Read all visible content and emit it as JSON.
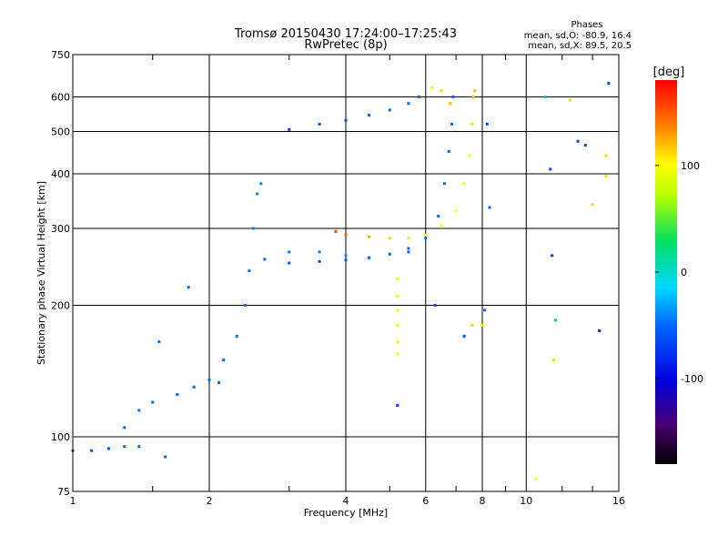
{
  "chart_data": {
    "type": "scatter",
    "title": "Tromsø 20150430 17:24:00–17:25:43",
    "subtitle": "RwPretec (8p)",
    "xlabel": "Frequency [MHz]",
    "ylabel": "Stationary phase Virtual Height [km]",
    "x_scale": "log",
    "y_scale": "log",
    "xlim": [
      1,
      16
    ],
    "ylim": [
      75,
      750
    ],
    "x_ticks": [
      1,
      2,
      4,
      6,
      8,
      10,
      16
    ],
    "x_tick_labels": [
      "1",
      "2",
      "4",
      "6",
      "8",
      "10",
      "16"
    ],
    "x_minor_ticks": [
      1.5,
      3,
      5,
      7,
      9,
      12,
      14
    ],
    "y_ticks": [
      75,
      100,
      200,
      300,
      400,
      500,
      600,
      750
    ],
    "y_tick_labels": [
      "75",
      "100",
      "200",
      "300",
      "400",
      "500",
      "600",
      "750"
    ],
    "grid": true,
    "info": {
      "heading": "Phases",
      "line_o": "mean, sd,O: -80.9, 16.4",
      "line_x": "mean, sd,X:  89.5, 20.5"
    },
    "colorbar": {
      "label": "[deg]",
      "min": -180,
      "max": 180,
      "ticks": [
        100,
        0,
        -100
      ],
      "tick_labels": [
        "100",
        "0",
        "-100"
      ]
    },
    "series": [
      {
        "points": [
          [
            1.0,
            93,
            -85
          ],
          [
            1.1,
            93,
            -85
          ],
          [
            1.2,
            94,
            -85
          ],
          [
            1.3,
            95,
            -83
          ],
          [
            1.4,
            95,
            -80
          ],
          [
            1.3,
            105,
            -80
          ],
          [
            1.4,
            115,
            -75
          ],
          [
            1.5,
            120,
            -80
          ],
          [
            1.7,
            125,
            -80
          ],
          [
            1.85,
            130,
            -78
          ],
          [
            2.0,
            135,
            -76
          ],
          [
            2.15,
            150,
            -76
          ],
          [
            2.3,
            170,
            -74
          ],
          [
            2.4,
            200,
            -72
          ],
          [
            2.45,
            240,
            -70
          ],
          [
            2.5,
            300,
            -66
          ],
          [
            2.55,
            360,
            -62
          ],
          [
            2.6,
            380,
            -60
          ],
          [
            2.65,
            255,
            -80
          ],
          [
            3.0,
            250,
            -86
          ],
          [
            3.5,
            252,
            -86
          ],
          [
            4.0,
            254,
            -84
          ],
          [
            4.5,
            257,
            -82
          ],
          [
            5.0,
            262,
            -80
          ],
          [
            5.5,
            270,
            -78
          ],
          [
            6.0,
            285,
            -78
          ],
          [
            6.4,
            320,
            -80
          ],
          [
            6.6,
            380,
            -80
          ],
          [
            6.75,
            450,
            -80
          ],
          [
            6.85,
            520,
            -80
          ],
          [
            6.9,
            600,
            -80
          ],
          [
            3.0,
            505,
            -90
          ],
          [
            3.5,
            520,
            -88
          ],
          [
            4.0,
            530,
            -85
          ],
          [
            4.5,
            545,
            -82
          ],
          [
            5.0,
            560,
            -80
          ],
          [
            5.5,
            580,
            -78
          ],
          [
            5.8,
            600,
            -78
          ],
          [
            3.0,
            265,
            -70
          ],
          [
            3.5,
            265,
            -65
          ],
          [
            4.0,
            260,
            -60
          ]
        ]
      },
      {
        "points": [
          [
            3.8,
            295,
            150
          ],
          [
            4.0,
            290,
            140
          ],
          [
            4.5,
            287,
            110
          ],
          [
            5.0,
            285,
            100
          ],
          [
            5.5,
            285,
            95
          ],
          [
            6.0,
            290,
            90
          ],
          [
            6.5,
            305,
            88
          ],
          [
            7.0,
            330,
            85
          ],
          [
            7.3,
            380,
            85
          ],
          [
            7.5,
            440,
            88
          ],
          [
            7.6,
            520,
            95
          ],
          [
            7.65,
            600,
            105
          ],
          [
            7.7,
            620,
            110
          ]
        ]
      },
      {
        "points": [
          [
            5.2,
            230,
            90
          ],
          [
            5.2,
            210,
            90
          ],
          [
            5.2,
            195,
            90
          ],
          [
            5.2,
            180,
            90
          ],
          [
            5.2,
            165,
            90
          ],
          [
            5.2,
            155,
            90
          ],
          [
            6.2,
            630,
            90
          ],
          [
            6.3,
            200,
            -85
          ],
          [
            6.5,
            620,
            100
          ],
          [
            6.8,
            580,
            110
          ],
          [
            7.3,
            170,
            -85
          ],
          [
            7.6,
            180,
            100
          ],
          [
            8.0,
            180,
            100
          ],
          [
            8.1,
            195,
            -80
          ],
          [
            8.2,
            520,
            -90
          ],
          [
            8.3,
            335,
            -80
          ],
          [
            10.5,
            80,
            80
          ],
          [
            11.0,
            600,
            -30
          ],
          [
            11.3,
            410,
            -90
          ],
          [
            11.4,
            260,
            -90
          ],
          [
            11.5,
            150,
            100
          ],
          [
            11.6,
            185,
            20
          ],
          [
            12.5,
            590,
            100
          ],
          [
            13.0,
            475,
            -90
          ],
          [
            13.5,
            465,
            -90
          ],
          [
            14.0,
            340,
            100
          ],
          [
            14.5,
            175,
            -100
          ],
          [
            15.0,
            440,
            100
          ],
          [
            15.0,
            395,
            100
          ],
          [
            15.2,
            645,
            -90
          ],
          [
            1.8,
            220,
            -80
          ],
          [
            1.55,
            165,
            -80
          ],
          [
            2.1,
            133,
            -80
          ],
          [
            1.6,
            90,
            -80
          ],
          [
            5.2,
            118,
            -90
          ],
          [
            5.5,
            265,
            -80
          ]
        ]
      }
    ]
  }
}
